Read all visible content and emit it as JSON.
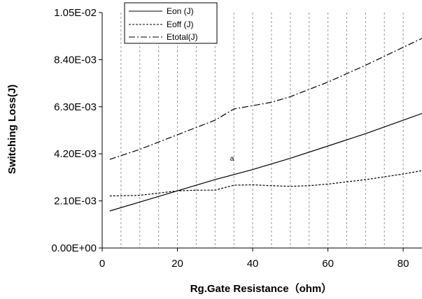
{
  "chart_data": {
    "type": "line",
    "title": "",
    "xlabel": "Rg.Gate Resistance（ohm）",
    "ylabel": "Switching Loss(J)",
    "xlim": [
      0,
      85
    ],
    "ylim": [
      0,
      0.0105
    ],
    "x_ticks": [
      "0",
      "20",
      "40",
      "60",
      "80"
    ],
    "x_tick_values": [
      0,
      20,
      40,
      60,
      80
    ],
    "y_ticks": [
      "0.00E+00",
      "2.10E-03",
      "4.20E-03",
      "6.30E-03",
      "8.40E-03",
      "1.05E-02"
    ],
    "y_tick_values": [
      0,
      0.0021,
      0.0042,
      0.0063,
      0.0084,
      0.0105
    ],
    "x_gridlines": [
      5,
      10,
      15,
      20,
      25,
      30,
      35,
      40,
      45,
      50,
      55,
      60,
      65,
      70,
      75,
      80
    ],
    "grid": "vertical dashed",
    "legend_position": "top-left",
    "annotation": {
      "text": "a",
      "x": 34,
      "y": 0.0039
    },
    "series": [
      {
        "name": "Eon (J)",
        "style": "solid",
        "x": [
          2,
          10,
          20,
          30,
          40,
          50,
          60,
          70,
          80,
          85
        ],
        "y": [
          0.00165,
          0.00205,
          0.00255,
          0.00305,
          0.0035,
          0.004,
          0.00455,
          0.0051,
          0.0057,
          0.006
        ]
      },
      {
        "name": "Eoff (J)",
        "style": "dotted",
        "x": [
          2,
          10,
          20,
          25,
          30,
          35,
          40,
          45,
          50,
          55,
          60,
          70,
          80,
          85
        ],
        "y": [
          0.00232,
          0.00235,
          0.00255,
          0.00258,
          0.00258,
          0.0028,
          0.00282,
          0.00278,
          0.00275,
          0.00278,
          0.00285,
          0.00305,
          0.0033,
          0.00345
        ]
      },
      {
        "name": "Etotal(J)",
        "style": "dash-dot",
        "x": [
          2,
          10,
          20,
          30,
          35,
          40,
          45,
          50,
          60,
          70,
          80,
          85
        ],
        "y": [
          0.00395,
          0.0044,
          0.00505,
          0.0057,
          0.0062,
          0.00635,
          0.0065,
          0.00675,
          0.0074,
          0.00815,
          0.00895,
          0.00935
        ]
      }
    ]
  }
}
